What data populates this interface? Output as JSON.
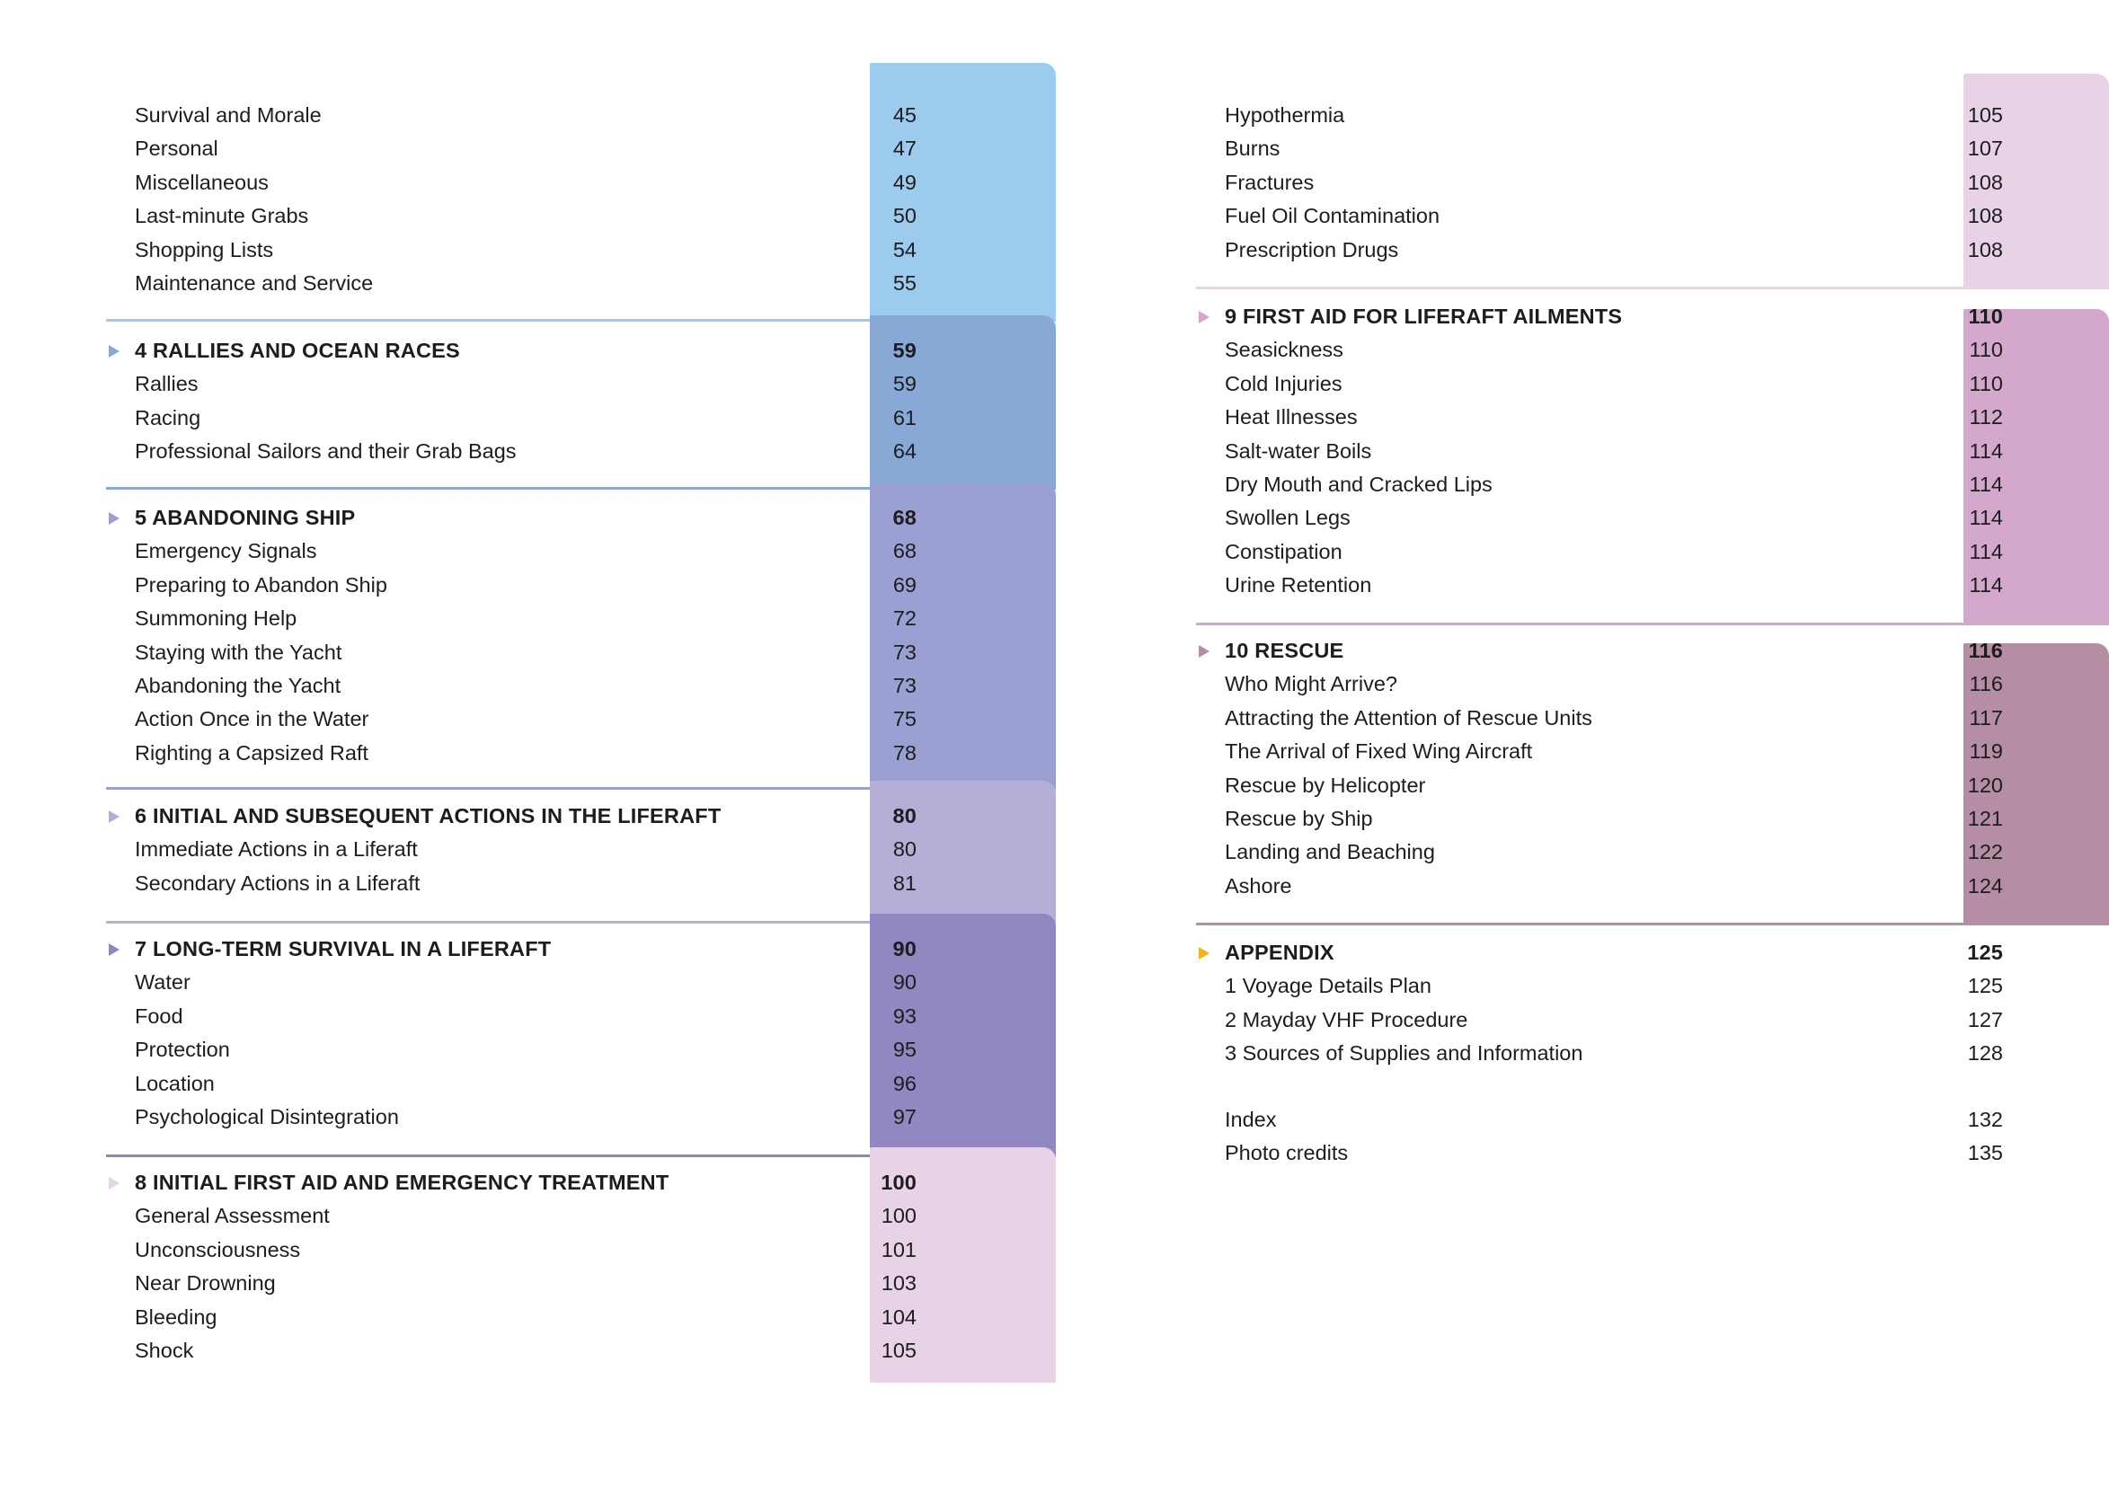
{
  "colors": {
    "sky": "#9ccbee",
    "steel": "#88a9d6",
    "periwinkle": "#9aa0d1",
    "lavender": "#b5afd8",
    "violet": "#9187c1",
    "blush": "#e7d2e6",
    "orchid": "#d4a8cd",
    "mauve": "#b58ea3",
    "gold": "#f2b31d"
  },
  "left": [
    {
      "key": "survival",
      "items": [
        {
          "title": "Survival and Morale",
          "page": "45"
        },
        {
          "title": "Personal",
          "page": "47"
        },
        {
          "title": "Miscellaneous",
          "page": "49"
        },
        {
          "title": "Last-minute Grabs",
          "page": "50"
        },
        {
          "title": "Shopping Lists",
          "page": "54"
        },
        {
          "title": "Maintenance and Service",
          "page": "55"
        }
      ]
    },
    {
      "key": "ch4",
      "heading": {
        "title": "4 RALLIES AND OCEAN RACES",
        "page": "59"
      },
      "items": [
        {
          "title": "Rallies",
          "page": "59"
        },
        {
          "title": "Racing",
          "page": "61"
        },
        {
          "title": "Professional Sailors and their Grab Bags",
          "page": "64"
        }
      ]
    },
    {
      "key": "ch5",
      "heading": {
        "title": "5 ABANDONING SHIP",
        "page": "68"
      },
      "items": [
        {
          "title": "Emergency Signals",
          "page": "68"
        },
        {
          "title": "Preparing to Abandon Ship",
          "page": "69"
        },
        {
          "title": "Summoning Help",
          "page": "72"
        },
        {
          "title": "Staying with the Yacht",
          "page": "73"
        },
        {
          "title": "Abandoning the Yacht",
          "page": "73"
        },
        {
          "title": "Action Once in the Water",
          "page": "75"
        },
        {
          "title": "Righting a Capsized Raft",
          "page": "78"
        }
      ]
    },
    {
      "key": "ch6",
      "heading": {
        "title": "6 INITIAL AND SUBSEQUENT ACTIONS IN THE LIFERAFT",
        "page": "80"
      },
      "items": [
        {
          "title": "Immediate Actions in a Liferaft",
          "page": "80"
        },
        {
          "title": "Secondary Actions in a Liferaft",
          "page": "81"
        }
      ]
    },
    {
      "key": "ch7",
      "heading": {
        "title": "7 LONG-TERM SURVIVAL IN A LIFERAFT",
        "page": "90"
      },
      "items": [
        {
          "title": "Water",
          "page": "90"
        },
        {
          "title": "Food",
          "page": "93"
        },
        {
          "title": "Protection",
          "page": "95"
        },
        {
          "title": "Location",
          "page": "96"
        },
        {
          "title": "Psychological Disintegration",
          "page": "97"
        }
      ]
    },
    {
      "key": "ch8",
      "heading": {
        "title": "8 INITIAL FIRST AID AND EMERGENCY TREATMENT",
        "page": "100"
      },
      "items": [
        {
          "title": "General Assessment",
          "page": "100"
        },
        {
          "title": "Unconsciousness",
          "page": "101"
        },
        {
          "title": "Near Drowning",
          "page": "103"
        },
        {
          "title": "Bleeding",
          "page": "104"
        },
        {
          "title": "Shock",
          "page": "105"
        }
      ]
    }
  ],
  "right": [
    {
      "key": "ch8cont",
      "items": [
        {
          "title": "Hypothermia",
          "page": "105"
        },
        {
          "title": "Burns",
          "page": "107"
        },
        {
          "title": "Fractures",
          "page": "108"
        },
        {
          "title": "Fuel Oil Contamination",
          "page": "108"
        },
        {
          "title": "Prescription Drugs",
          "page": "108"
        }
      ]
    },
    {
      "key": "ch9",
      "heading": {
        "title": "9 FIRST AID FOR LIFERAFT AILMENTS",
        "page": "110"
      },
      "items": [
        {
          "title": "Seasickness",
          "page": "110"
        },
        {
          "title": "Cold Injuries",
          "page": "110"
        },
        {
          "title": "Heat Illnesses",
          "page": "112"
        },
        {
          "title": "Salt-water Boils",
          "page": "114"
        },
        {
          "title": "Dry Mouth and Cracked Lips",
          "page": "114"
        },
        {
          "title": "Swollen Legs",
          "page": "114"
        },
        {
          "title": "Constipation",
          "page": "114"
        },
        {
          "title": "Urine Retention",
          "page": "114"
        }
      ]
    },
    {
      "key": "ch10",
      "heading": {
        "title": "10 RESCUE",
        "page": "116"
      },
      "items": [
        {
          "title": "Who Might Arrive?",
          "page": "116"
        },
        {
          "title": "Attracting the Attention of Rescue Units",
          "page": "117"
        },
        {
          "title": "The Arrival of Fixed Wing Aircraft",
          "page": "119"
        },
        {
          "title": "Rescue by Helicopter",
          "page": "120"
        },
        {
          "title": "Rescue by Ship",
          "page": "121"
        },
        {
          "title": "Landing and Beaching",
          "page": "122"
        },
        {
          "title": "Ashore",
          "page": "124"
        }
      ]
    },
    {
      "key": "appendix",
      "heading": {
        "title": "APPENDIX",
        "page": "125"
      },
      "items": [
        {
          "title": "1 Voyage Details Plan",
          "page": "125"
        },
        {
          "title": "2 Mayday VHF Procedure",
          "page": "127"
        },
        {
          "title": "3 Sources of Supplies and Information",
          "page": "128"
        }
      ]
    },
    {
      "key": "back",
      "items": [
        {
          "title": "Index",
          "page": "132"
        },
        {
          "title": "Photo credits",
          "page": "135"
        }
      ]
    }
  ]
}
